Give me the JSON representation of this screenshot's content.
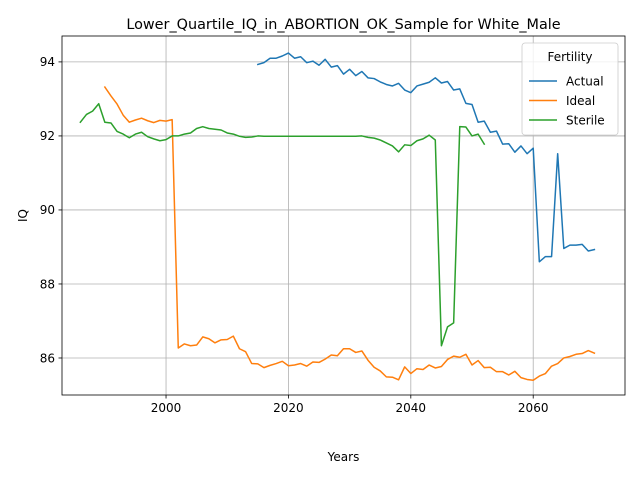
{
  "chart_data": {
    "type": "line",
    "title": "Lower_Quartile_IQ_in_ABORTION_OK_Sample for White_Male",
    "xlabel": "Years",
    "ylabel": "IQ",
    "xlim": [
      1983,
      2075
    ],
    "ylim": [
      85.0,
      94.7
    ],
    "xticks": [
      2000,
      2020,
      2040,
      2060
    ],
    "yticks": [
      86,
      88,
      90,
      92,
      94
    ],
    "grid": true,
    "legend": {
      "title": "Fertility",
      "placement": "top-right"
    },
    "series": [
      {
        "name": "Actual",
        "color": "#1f77b4",
        "x": [
          2015,
          2016,
          2017,
          2018,
          2019,
          2020,
          2021,
          2022,
          2023,
          2024,
          2025,
          2026,
          2027,
          2028,
          2029,
          2030,
          2031,
          2032,
          2033,
          2034,
          2035,
          2036,
          2037,
          2038,
          2039,
          2040,
          2041,
          2042,
          2043,
          2044,
          2045,
          2046,
          2047,
          2048,
          2049,
          2050,
          2051,
          2052,
          2053,
          2054,
          2055,
          2056,
          2057,
          2058,
          2059,
          2060,
          2061,
          2062,
          2063,
          2064,
          2065,
          2066,
          2067,
          2068,
          2069,
          2070
        ],
        "values": [
          93.93,
          93.98,
          94.1,
          94.1,
          94.16,
          94.24,
          94.1,
          94.14,
          93.98,
          94.02,
          93.91,
          94.07,
          93.86,
          93.9,
          93.67,
          93.8,
          93.63,
          93.74,
          93.57,
          93.55,
          93.46,
          93.39,
          93.35,
          93.42,
          93.24,
          93.17,
          93.35,
          93.4,
          93.45,
          93.57,
          93.43,
          93.47,
          93.24,
          93.27,
          92.88,
          92.85,
          92.37,
          92.4,
          92.1,
          92.13,
          91.78,
          91.79,
          91.56,
          91.73,
          91.52,
          91.67,
          88.6,
          88.74,
          88.74,
          91.52,
          88.96,
          89.05,
          89.05,
          89.07,
          88.89,
          88.93
        ]
      },
      {
        "name": "Ideal",
        "color": "#ff7f0e",
        "x": [
          1990,
          1991,
          1992,
          1993,
          1994,
          1995,
          1996,
          1997,
          1998,
          1999,
          2000,
          2001,
          2002,
          2003,
          2004,
          2005,
          2006,
          2007,
          2008,
          2009,
          2010,
          2011,
          2012,
          2013,
          2014,
          2015,
          2016,
          2017,
          2018,
          2019,
          2020,
          2021,
          2022,
          2023,
          2024,
          2025,
          2026,
          2027,
          2028,
          2029,
          2030,
          2031,
          2032,
          2033,
          2034,
          2035,
          2036,
          2037,
          2038,
          2039,
          2040,
          2041,
          2042,
          2043,
          2044,
          2045,
          2046,
          2047,
          2048,
          2049,
          2050,
          2051,
          2052,
          2053,
          2054,
          2055,
          2056,
          2057,
          2058,
          2059,
          2060,
          2061,
          2062,
          2063,
          2064,
          2065,
          2066,
          2067,
          2068,
          2069,
          2070
        ],
        "values": [
          93.32,
          93.08,
          92.86,
          92.56,
          92.37,
          92.43,
          92.48,
          92.41,
          92.36,
          92.42,
          92.4,
          92.44,
          86.27,
          86.38,
          86.33,
          86.35,
          86.57,
          86.52,
          86.41,
          86.49,
          86.5,
          86.59,
          86.25,
          86.17,
          85.85,
          85.84,
          85.74,
          85.8,
          85.85,
          85.91,
          85.79,
          85.81,
          85.85,
          85.78,
          85.89,
          85.88,
          85.97,
          86.08,
          86.06,
          86.25,
          86.25,
          86.15,
          86.19,
          85.94,
          85.75,
          85.65,
          85.49,
          85.48,
          85.41,
          85.76,
          85.58,
          85.71,
          85.69,
          85.81,
          85.73,
          85.77,
          85.96,
          86.05,
          86.02,
          86.1,
          85.81,
          85.93,
          85.74,
          85.75,
          85.63,
          85.63,
          85.54,
          85.64,
          85.47,
          85.42,
          85.4,
          85.51,
          85.58,
          85.78,
          85.85,
          86.0,
          86.04,
          86.1,
          86.12,
          86.2,
          86.13
        ]
      },
      {
        "name": "Sterile",
        "color": "#2ca02c",
        "x": [
          1986,
          1987,
          1988,
          1989,
          1990,
          1991,
          1992,
          1993,
          1994,
          1995,
          1996,
          1997,
          1998,
          1999,
          2000,
          2001,
          2002,
          2003,
          2004,
          2005,
          2006,
          2007,
          2008,
          2009,
          2010,
          2011,
          2012,
          2013,
          2014,
          2015,
          2016,
          2017,
          2018,
          2019,
          2020,
          2021,
          2022,
          2023,
          2024,
          2025,
          2026,
          2027,
          2028,
          2029,
          2030,
          2031,
          2032,
          2033,
          2034,
          2035,
          2036,
          2037,
          2038,
          2039,
          2040,
          2041,
          2042,
          2043,
          2044,
          2045,
          2046,
          2047,
          2048,
          2049,
          2050,
          2051,
          2052
        ],
        "values": [
          92.37,
          92.58,
          92.67,
          92.87,
          92.37,
          92.35,
          92.12,
          92.05,
          91.95,
          92.05,
          92.1,
          91.98,
          91.92,
          91.87,
          91.9,
          92.0,
          92.0,
          92.05,
          92.08,
          92.2,
          92.25,
          92.2,
          92.18,
          92.16,
          92.08,
          92.05,
          91.99,
          91.96,
          91.97,
          92.0,
          91.99,
          91.99,
          91.99,
          91.99,
          91.99,
          91.99,
          91.99,
          91.99,
          91.99,
          91.99,
          91.99,
          91.99,
          91.99,
          91.99,
          91.99,
          91.99,
          92.0,
          91.96,
          91.94,
          91.89,
          91.81,
          91.73,
          91.57,
          91.76,
          91.74,
          91.87,
          91.92,
          92.02,
          91.89,
          86.33,
          86.84,
          86.95,
          92.25,
          92.24,
          92.0,
          92.05,
          91.78
        ]
      }
    ]
  }
}
